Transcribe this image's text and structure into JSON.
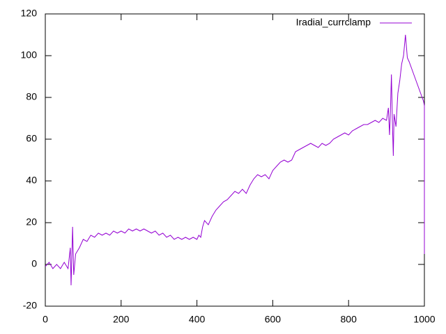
{
  "chart_data": {
    "type": "line",
    "x": [
      0,
      10,
      20,
      30,
      40,
      50,
      60,
      66,
      68,
      70,
      72,
      75,
      80,
      90,
      100,
      110,
      120,
      130,
      140,
      150,
      160,
      170,
      180,
      190,
      200,
      210,
      220,
      230,
      240,
      250,
      260,
      270,
      280,
      290,
      300,
      310,
      320,
      330,
      340,
      350,
      360,
      370,
      380,
      390,
      400,
      405,
      410,
      415,
      420,
      430,
      440,
      450,
      460,
      470,
      480,
      490,
      500,
      510,
      520,
      530,
      540,
      550,
      560,
      570,
      580,
      590,
      600,
      610,
      620,
      630,
      640,
      650,
      660,
      670,
      680,
      690,
      700,
      710,
      720,
      730,
      740,
      750,
      760,
      770,
      780,
      790,
      800,
      810,
      820,
      830,
      840,
      850,
      860,
      870,
      880,
      890,
      900,
      905,
      908,
      910,
      913,
      916,
      918,
      920,
      925,
      930,
      935,
      940,
      945,
      950,
      955,
      960,
      970,
      980,
      990,
      998,
      1000,
      1000
    ],
    "series": [
      {
        "name": "Iradial_currclamp",
        "color": "#9400d3",
        "values": [
          -1,
          1,
          -2,
          0,
          -2,
          1,
          -2,
          8,
          -10,
          3,
          18,
          -5,
          5,
          8,
          12,
          11,
          14,
          13,
          15,
          14,
          15,
          14,
          16,
          15,
          16,
          15,
          17,
          16,
          17,
          16,
          17,
          16,
          15,
          16,
          14,
          15,
          13,
          14,
          12,
          13,
          12,
          13,
          12,
          13,
          12,
          14,
          13,
          18,
          21,
          19,
          23,
          26,
          28,
          30,
          31,
          33,
          35,
          34,
          36,
          34,
          38,
          41,
          43,
          42,
          43,
          41,
          45,
          47,
          49,
          50,
          49,
          50,
          54,
          55,
          56,
          57,
          58,
          57,
          56,
          58,
          57,
          58,
          60,
          61,
          62,
          63,
          62,
          64,
          65,
          66,
          67,
          67,
          68,
          69,
          68,
          70,
          69,
          75,
          62,
          71,
          91,
          65,
          52,
          72,
          66,
          82,
          88,
          96,
          100,
          110,
          99,
          97,
          92,
          87,
          82,
          78,
          76,
          5
        ]
      }
    ],
    "xlim": [
      0,
      1000
    ],
    "xticks": [
      0,
      200,
      400,
      600,
      800,
      1000
    ],
    "ylim": [
      -20,
      120
    ],
    "yticks": [
      -20,
      0,
      20,
      40,
      60,
      80,
      100,
      120
    ],
    "legend": "top-right"
  }
}
